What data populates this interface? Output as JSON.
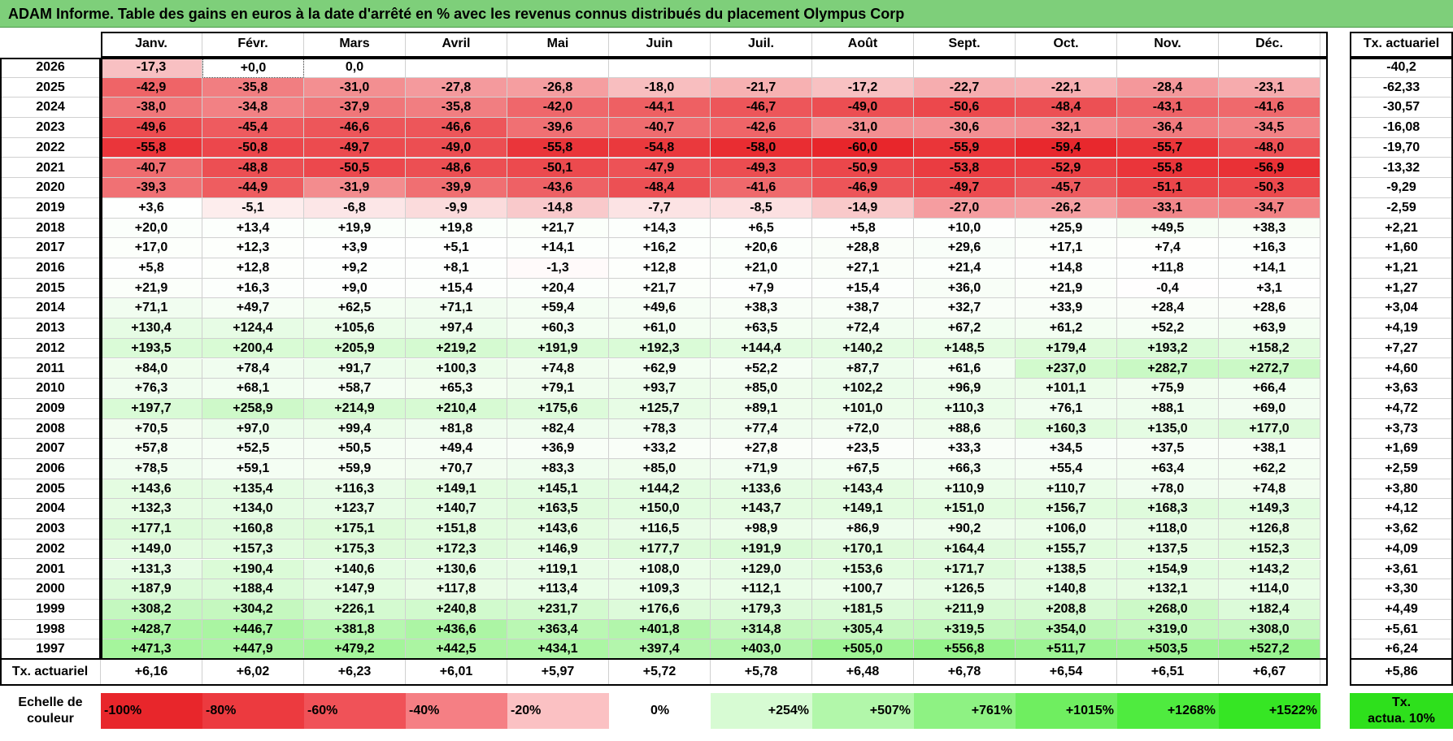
{
  "title": "ADAM Informe. Table des gains en euros à la date d'arrêté en % avec les revenus connus distribués du placement Olympus Corp",
  "months": [
    "Janv.",
    "Févr.",
    "Mars",
    "Avril",
    "Mai",
    "Juin",
    "Juil.",
    "Août",
    "Sept.",
    "Oct.",
    "Nov.",
    "Déc."
  ],
  "tx_header": "Tx. actuariel",
  "rows": [
    {
      "year": "2026",
      "tx": "-40,2",
      "values": [
        "-17,3",
        "+0,0",
        "0,0",
        "",
        "",
        "",
        "",
        "",
        "",
        "",
        "",
        ""
      ]
    },
    {
      "year": "2025",
      "tx": "-62,33",
      "values": [
        "-42,9",
        "-35,8",
        "-31,0",
        "-27,8",
        "-26,8",
        "-18,0",
        "-21,7",
        "-17,2",
        "-22,7",
        "-22,1",
        "-28,4",
        "-23,1"
      ]
    },
    {
      "year": "2024",
      "tx": "-30,57",
      "values": [
        "-38,0",
        "-34,8",
        "-37,9",
        "-35,8",
        "-42,0",
        "-44,1",
        "-46,7",
        "-49,0",
        "-50,6",
        "-48,4",
        "-43,1",
        "-41,6"
      ]
    },
    {
      "year": "2023",
      "tx": "-16,08",
      "values": [
        "-49,6",
        "-45,4",
        "-46,6",
        "-46,6",
        "-39,6",
        "-40,7",
        "-42,6",
        "-31,0",
        "-30,6",
        "-32,1",
        "-36,4",
        "-34,5"
      ]
    },
    {
      "year": "2022",
      "tx": "-19,70",
      "values": [
        "-55,8",
        "-50,8",
        "-49,7",
        "-49,0",
        "-55,8",
        "-54,8",
        "-58,0",
        "-60,0",
        "-55,9",
        "-59,4",
        "-55,7",
        "-48,0"
      ]
    },
    {
      "year": "2021",
      "tx": "-13,32",
      "values": [
        "-40,7",
        "-48,8",
        "-50,5",
        "-48,6",
        "-50,1",
        "-47,9",
        "-49,3",
        "-50,9",
        "-53,8",
        "-52,9",
        "-55,8",
        "-56,9"
      ]
    },
    {
      "year": "2020",
      "tx": "-9,29",
      "values": [
        "-39,3",
        "-44,9",
        "-31,9",
        "-39,9",
        "-43,6",
        "-48,4",
        "-41,6",
        "-46,9",
        "-49,7",
        "-45,7",
        "-51,1",
        "-50,3"
      ]
    },
    {
      "year": "2019",
      "tx": "-2,59",
      "values": [
        "+3,6",
        "-5,1",
        "-6,8",
        "-9,9",
        "-14,8",
        "-7,7",
        "-8,5",
        "-14,9",
        "-27,0",
        "-26,2",
        "-33,1",
        "-34,7"
      ]
    },
    {
      "year": "2018",
      "tx": "+2,21",
      "values": [
        "+20,0",
        "+13,4",
        "+19,9",
        "+19,8",
        "+21,7",
        "+14,3",
        "+6,5",
        "+5,8",
        "+10,0",
        "+25,9",
        "+49,5",
        "+38,3"
      ]
    },
    {
      "year": "2017",
      "tx": "+1,60",
      "values": [
        "+17,0",
        "+12,3",
        "+3,9",
        "+5,1",
        "+14,1",
        "+16,2",
        "+20,6",
        "+28,8",
        "+29,6",
        "+17,1",
        "+7,4",
        "+16,3"
      ]
    },
    {
      "year": "2016",
      "tx": "+1,21",
      "values": [
        "+5,8",
        "+12,8",
        "+9,2",
        "+8,1",
        "-1,3",
        "+12,8",
        "+21,0",
        "+27,1",
        "+21,4",
        "+14,8",
        "+11,8",
        "+14,1"
      ]
    },
    {
      "year": "2015",
      "tx": "+1,27",
      "values": [
        "+21,9",
        "+16,3",
        "+9,0",
        "+15,4",
        "+20,4",
        "+21,7",
        "+7,9",
        "+15,4",
        "+36,0",
        "+21,9",
        "-0,4",
        "+3,1"
      ]
    },
    {
      "year": "2014",
      "tx": "+3,04",
      "values": [
        "+71,1",
        "+49,7",
        "+62,5",
        "+71,1",
        "+59,4",
        "+49,6",
        "+38,3",
        "+38,7",
        "+32,7",
        "+33,9",
        "+28,4",
        "+28,6"
      ]
    },
    {
      "year": "2013",
      "tx": "+4,19",
      "values": [
        "+130,4",
        "+124,4",
        "+105,6",
        "+97,4",
        "+60,3",
        "+61,0",
        "+63,5",
        "+72,4",
        "+67,2",
        "+61,2",
        "+52,2",
        "+63,9"
      ]
    },
    {
      "year": "2012",
      "tx": "+7,27",
      "values": [
        "+193,5",
        "+200,4",
        "+205,9",
        "+219,2",
        "+191,9",
        "+192,3",
        "+144,4",
        "+140,2",
        "+148,5",
        "+179,4",
        "+193,2",
        "+158,2"
      ]
    },
    {
      "year": "2011",
      "tx": "+4,60",
      "values": [
        "+84,0",
        "+78,4",
        "+91,7",
        "+100,3",
        "+74,8",
        "+62,9",
        "+52,2",
        "+87,7",
        "+61,6",
        "+237,0",
        "+282,7",
        "+272,7"
      ]
    },
    {
      "year": "2010",
      "tx": "+3,63",
      "values": [
        "+76,3",
        "+68,1",
        "+58,7",
        "+65,3",
        "+79,1",
        "+93,7",
        "+85,0",
        "+102,2",
        "+96,9",
        "+101,1",
        "+75,9",
        "+66,4"
      ]
    },
    {
      "year": "2009",
      "tx": "+4,72",
      "values": [
        "+197,7",
        "+258,9",
        "+214,9",
        "+210,4",
        "+175,6",
        "+125,7",
        "+89,1",
        "+101,0",
        "+110,3",
        "+76,1",
        "+88,1",
        "+69,0"
      ]
    },
    {
      "year": "2008",
      "tx": "+3,73",
      "values": [
        "+70,5",
        "+97,0",
        "+99,4",
        "+81,8",
        "+82,4",
        "+78,3",
        "+77,4",
        "+72,0",
        "+88,6",
        "+160,3",
        "+135,0",
        "+177,0"
      ]
    },
    {
      "year": "2007",
      "tx": "+1,69",
      "values": [
        "+57,8",
        "+52,5",
        "+50,5",
        "+49,4",
        "+36,9",
        "+33,2",
        "+27,8",
        "+23,5",
        "+33,3",
        "+34,5",
        "+37,5",
        "+38,1"
      ]
    },
    {
      "year": "2006",
      "tx": "+2,59",
      "values": [
        "+78,5",
        "+59,1",
        "+59,9",
        "+70,7",
        "+83,3",
        "+85,0",
        "+71,9",
        "+67,5",
        "+66,3",
        "+55,4",
        "+63,4",
        "+62,2"
      ]
    },
    {
      "year": "2005",
      "tx": "+3,80",
      "values": [
        "+143,6",
        "+135,4",
        "+116,3",
        "+149,1",
        "+145,1",
        "+144,2",
        "+133,6",
        "+143,4",
        "+110,9",
        "+110,7",
        "+78,0",
        "+74,8"
      ]
    },
    {
      "year": "2004",
      "tx": "+4,12",
      "values": [
        "+132,3",
        "+134,0",
        "+123,7",
        "+140,7",
        "+163,5",
        "+150,0",
        "+143,7",
        "+149,1",
        "+151,0",
        "+156,7",
        "+168,3",
        "+149,3"
      ]
    },
    {
      "year": "2003",
      "tx": "+3,62",
      "values": [
        "+177,1",
        "+160,8",
        "+175,1",
        "+151,8",
        "+143,6",
        "+116,5",
        "+98,9",
        "+86,9",
        "+90,2",
        "+106,0",
        "+118,0",
        "+126,8"
      ]
    },
    {
      "year": "2002",
      "tx": "+4,09",
      "values": [
        "+149,0",
        "+157,3",
        "+175,3",
        "+172,3",
        "+146,9",
        "+177,7",
        "+191,9",
        "+170,1",
        "+164,4",
        "+155,7",
        "+137,5",
        "+152,3"
      ]
    },
    {
      "year": "2001",
      "tx": "+3,61",
      "values": [
        "+131,3",
        "+190,4",
        "+140,6",
        "+130,6",
        "+119,1",
        "+108,0",
        "+129,0",
        "+153,6",
        "+171,7",
        "+138,5",
        "+154,9",
        "+143,2"
      ]
    },
    {
      "year": "2000",
      "tx": "+3,30",
      "values": [
        "+187,9",
        "+188,4",
        "+147,9",
        "+117,8",
        "+113,4",
        "+109,3",
        "+112,1",
        "+100,7",
        "+126,5",
        "+140,8",
        "+132,1",
        "+114,0"
      ]
    },
    {
      "year": "1999",
      "tx": "+4,49",
      "values": [
        "+308,2",
        "+304,2",
        "+226,1",
        "+240,8",
        "+231,7",
        "+176,6",
        "+179,3",
        "+181,5",
        "+211,9",
        "+208,8",
        "+268,0",
        "+182,4"
      ]
    },
    {
      "year": "1998",
      "tx": "+5,61",
      "values": [
        "+428,7",
        "+446,7",
        "+381,8",
        "+436,6",
        "+363,4",
        "+401,8",
        "+314,8",
        "+305,4",
        "+319,5",
        "+354,0",
        "+319,0",
        "+308,0"
      ]
    },
    {
      "year": "1997",
      "tx": "+6,24",
      "values": [
        "+471,3",
        "+447,9",
        "+479,2",
        "+442,5",
        "+434,1",
        "+397,4",
        "+403,0",
        "+505,0",
        "+556,8",
        "+511,7",
        "+503,5",
        "+527,2"
      ]
    }
  ],
  "summary": {
    "label": "Tx. actuariel",
    "values": [
      "+6,16",
      "+6,02",
      "+6,23",
      "+6,01",
      "+5,97",
      "+5,72",
      "+5,78",
      "+6,48",
      "+6,78",
      "+6,54",
      "+6,51",
      "+6,67"
    ],
    "total": "+5,86"
  },
  "scale": {
    "label_line1": "Echelle de",
    "label_line2": "couleur",
    "items": [
      {
        "text": "-100%",
        "color": "#e8262b",
        "align": "left"
      },
      {
        "text": "-80%",
        "color": "#ec3a3f",
        "align": "left"
      },
      {
        "text": "-60%",
        "color": "#f05258",
        "align": "left"
      },
      {
        "text": "-40%",
        "color": "#f57f84",
        "align": "left"
      },
      {
        "text": "-20%",
        "color": "#fbc1c3",
        "align": "left"
      },
      {
        "text": "0%",
        "color": "#ffffff",
        "align": "center"
      },
      {
        "text": "+254%",
        "color": "#d7fbd3",
        "align": "right"
      },
      {
        "text": "+507%",
        "color": "#b2f7aa",
        "align": "right"
      },
      {
        "text": "+761%",
        "color": "#8ef283",
        "align": "right"
      },
      {
        "text": "+1015%",
        "color": "#6fee60",
        "align": "right"
      },
      {
        "text": "+1268%",
        "color": "#4feb3f",
        "align": "right"
      },
      {
        "text": "+1522%",
        "color": "#36e624",
        "align": "right"
      }
    ],
    "tx_label_line1": "Tx.",
    "tx_label_line2": "actua. 10%",
    "tx_color": "#2ee01c"
  }
}
